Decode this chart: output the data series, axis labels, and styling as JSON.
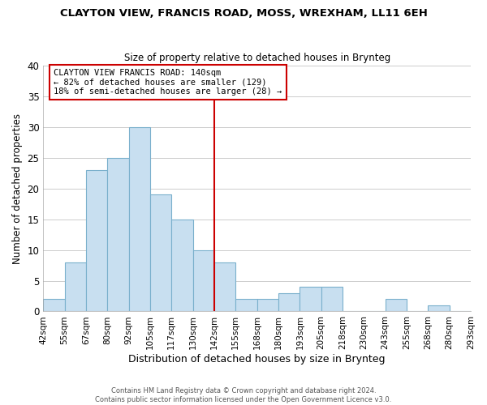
{
  "title": "CLAYTON VIEW, FRANCIS ROAD, MOSS, WREXHAM, LL11 6EH",
  "subtitle": "Size of property relative to detached houses in Brynteg",
  "xlabel": "Distribution of detached houses by size in Brynteg",
  "ylabel": "Number of detached properties",
  "bar_color": "#c8dff0",
  "bar_edge_color": "#7ab0cc",
  "grid_color": "#cccccc",
  "bg_color": "#ffffff",
  "bin_labels": [
    "42sqm",
    "55sqm",
    "67sqm",
    "80sqm",
    "92sqm",
    "105sqm",
    "117sqm",
    "130sqm",
    "142sqm",
    "155sqm",
    "168sqm",
    "180sqm",
    "193sqm",
    "205sqm",
    "218sqm",
    "230sqm",
    "243sqm",
    "255sqm",
    "268sqm",
    "280sqm",
    "293sqm"
  ],
  "num_bins": 20,
  "bar_heights": [
    2,
    8,
    23,
    25,
    30,
    19,
    15,
    10,
    8,
    2,
    2,
    3,
    4,
    4,
    0,
    0,
    2,
    0,
    1,
    0
  ],
  "vline_bin": 8,
  "vline_color": "#cc0000",
  "annotation_text": "CLAYTON VIEW FRANCIS ROAD: 140sqm\n← 82% of detached houses are smaller (129)\n18% of semi-detached houses are larger (28) →",
  "annotation_box_color": "#ffffff",
  "annotation_box_edge": "#cc0000",
  "ylim": [
    0,
    40
  ],
  "yticks": [
    0,
    5,
    10,
    15,
    20,
    25,
    30,
    35,
    40
  ],
  "footer_line1": "Contains HM Land Registry data © Crown copyright and database right 2024.",
  "footer_line2": "Contains public sector information licensed under the Open Government Licence v3.0."
}
